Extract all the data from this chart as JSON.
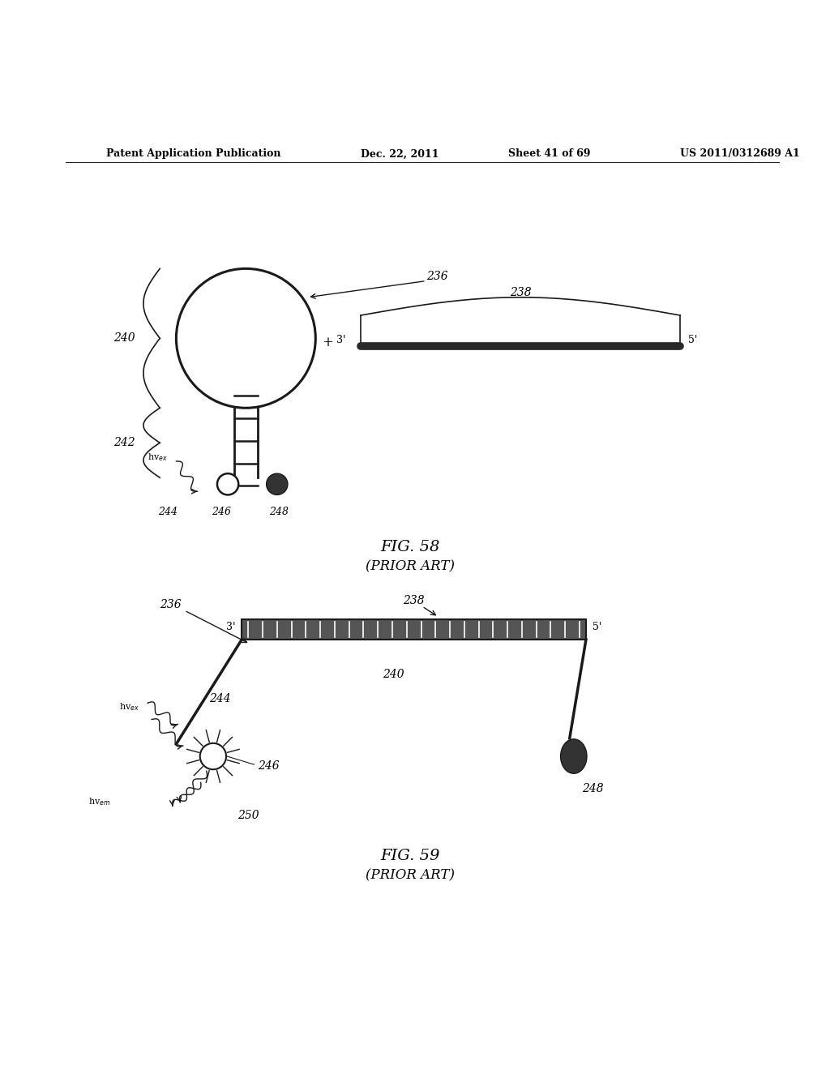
{
  "bg_color": "#ffffff",
  "header_text": "Patent Application Publication",
  "header_date": "Dec. 22, 2011",
  "header_sheet": "Sheet 41 of 69",
  "header_patent": "US 2011/0312689 A1",
  "fig58_title": "FIG. 58",
  "fig58_subtitle": "(PRIOR ART)",
  "fig59_title": "FIG. 59",
  "fig59_subtitle": "(PRIOR ART)",
  "line_color": "#1a1a1a"
}
